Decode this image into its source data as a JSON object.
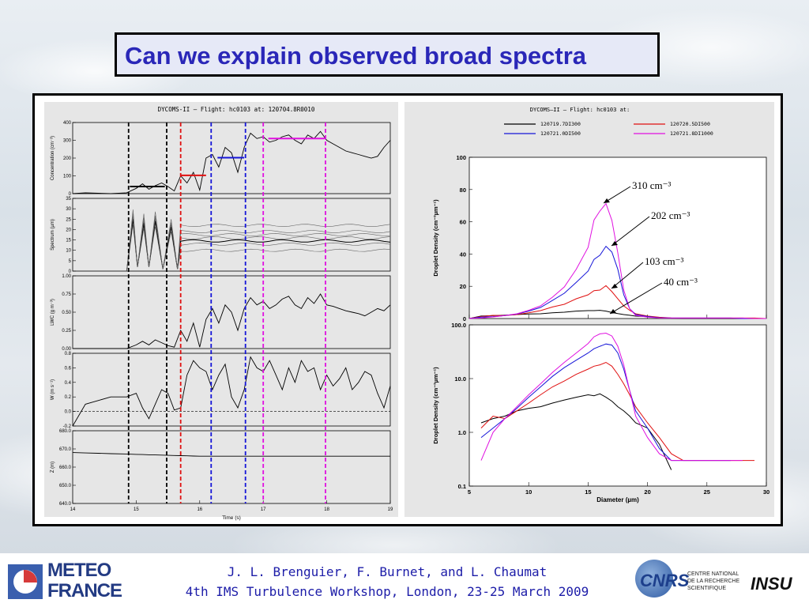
{
  "slide": {
    "title": "Can we explain observed broad spectra",
    "footer_line1": "J. L. Brenguier, F. Burnet, and L. Chaumat",
    "footer_line2": "4th IMS Turbulence Workshop, London, 23-25 March 2009",
    "logo_left_line1": "METEO",
    "logo_left_line2": "FRANCE",
    "logo_right_cnrs": "CNRS",
    "logo_right_name": "CENTRE NATIONAL DE LA RECHERCHE SCIENTIFIQUE",
    "logo_right_insu": "INSU"
  },
  "colors": {
    "title": "#2a27b8",
    "black": "#000000",
    "red": "#e01010",
    "blue": "#1515d8",
    "magenta": "#e010e0"
  },
  "chart_data": [
    {
      "type": "line",
      "title": "DYCOMS-II  –   Flight:  hc0103   at:  120704.8R0010",
      "xlabel": "Time (s)",
      "x_ticks": [
        "14",
        "15",
        "16",
        "17",
        "18",
        "19"
      ],
      "xlim": [
        14,
        19
      ],
      "time_x": [
        14.0,
        14.2,
        14.4,
        14.6,
        14.85,
        15.0,
        15.1,
        15.2,
        15.3,
        15.4,
        15.5,
        15.6,
        15.7,
        15.8,
        15.9,
        16.0,
        16.1,
        16.2,
        16.3,
        16.4,
        16.5,
        16.6,
        16.7,
        16.8,
        16.9,
        17.0,
        17.1,
        17.2,
        17.3,
        17.4,
        17.5,
        17.6,
        17.7,
        17.8,
        17.9,
        18.0,
        18.1,
        18.2,
        18.3,
        18.4,
        18.5,
        18.6,
        18.7,
        18.8,
        18.9,
        19.0
      ],
      "vertical_markers": [
        {
          "t": 14.88,
          "color": "black"
        },
        {
          "t": 15.48,
          "color": "black"
        },
        {
          "t": 15.7,
          "color": "red"
        },
        {
          "t": 16.18,
          "color": "blue"
        },
        {
          "t": 16.72,
          "color": "blue"
        },
        {
          "t": 17.0,
          "color": "magenta"
        },
        {
          "t": 17.98,
          "color": "magenta"
        }
      ],
      "panels": [
        {
          "ylabel": "Concentration (cm⁻³)",
          "ylim": [
            0,
            400
          ],
          "y_ticks": [
            "0",
            "100",
            "200",
            "300",
            "400"
          ],
          "values": [
            0,
            5,
            2,
            0,
            5,
            30,
            55,
            25,
            45,
            60,
            40,
            15,
            100,
            60,
            120,
            20,
            200,
            220,
            150,
            260,
            230,
            120,
            260,
            340,
            310,
            320,
            290,
            300,
            320,
            330,
            300,
            280,
            330,
            310,
            350,
            300,
            280,
            260,
            240,
            230,
            220,
            210,
            200,
            210,
            260,
            300
          ],
          "level_bars": [
            {
              "t0": 14.9,
              "t1": 15.45,
              "value": 40,
              "color": "black"
            },
            {
              "t0": 15.7,
              "t1": 16.1,
              "value": 103,
              "color": "red"
            },
            {
              "t0": 16.28,
              "t1": 16.7,
              "value": 202,
              "color": "blue"
            },
            {
              "t0": 17.08,
              "t1": 17.98,
              "value": 310,
              "color": "magenta"
            }
          ]
        },
        {
          "ylabel": "Spectrum (µm)",
          "ylim": [
            0,
            35
          ],
          "y_ticks": [
            "0",
            "5",
            "10",
            "15",
            "20",
            "25",
            "30",
            "35"
          ]
        },
        {
          "ylabel": "LWC (g m⁻³)",
          "ylim": [
            0,
            1.0
          ],
          "y_ticks": [
            "0.00",
            "0.25",
            "0.50",
            "0.75",
            "1.00"
          ],
          "values": [
            0,
            0,
            0,
            0,
            0,
            0.05,
            0.1,
            0.05,
            0.12,
            0.08,
            0.04,
            0.02,
            0.25,
            0.1,
            0.35,
            0.02,
            0.4,
            0.55,
            0.35,
            0.6,
            0.5,
            0.25,
            0.55,
            0.7,
            0.6,
            0.65,
            0.55,
            0.6,
            0.68,
            0.72,
            0.6,
            0.55,
            0.7,
            0.62,
            0.75,
            0.6,
            0.58,
            0.55,
            0.52,
            0.5,
            0.48,
            0.45,
            0.5,
            0.55,
            0.52,
            0.6
          ]
        },
        {
          "ylabel": "W (m s⁻¹)",
          "ylim": [
            -0.2,
            0.8
          ],
          "y_ticks": [
            "-0.2",
            "0.0",
            "0.2",
            "0.4",
            "0.6",
            "0.8"
          ],
          "values": [
            -0.2,
            0.1,
            0.15,
            0.2,
            0.2,
            0.25,
            0.05,
            -0.1,
            0.1,
            0.3,
            0.25,
            0.02,
            0.05,
            0.5,
            0.7,
            0.6,
            0.55,
            0.3,
            0.5,
            0.65,
            0.2,
            0.05,
            0.3,
            0.75,
            0.6,
            0.55,
            0.7,
            0.5,
            0.3,
            0.6,
            0.4,
            0.7,
            0.55,
            0.6,
            0.3,
            0.5,
            0.35,
            0.45,
            0.6,
            0.3,
            0.4,
            0.55,
            0.5,
            0.25,
            0.05,
            0.35
          ],
          "dashed_zero": true
        },
        {
          "ylabel": "Z (m)",
          "ylim": [
            640,
            680
          ],
          "y_ticks": [
            "640.0",
            "650.0",
            "660.0",
            "670.0",
            "680.0"
          ],
          "values": [
            668,
            667.8,
            667.6,
            667.4,
            667.2,
            667.0,
            666.9,
            666.8,
            666.7,
            666.6,
            666.5,
            666.4,
            666.3,
            666.2,
            666.1,
            666.0,
            666.0,
            666.0,
            666.0,
            666.0,
            666.0,
            666.0,
            666.0,
            666.0,
            666.0,
            666.0,
            666.0,
            666.0,
            666.0,
            666.0,
            666.0,
            666.0,
            666.0,
            666.0,
            666.0,
            666.0,
            666.0,
            666.0,
            666.0,
            666.0,
            666.0,
            666.0,
            666.0,
            666.0,
            666.0,
            666.0
          ]
        }
      ]
    },
    {
      "type": "line",
      "title": "DYCOMS–II   –   Flight:   hc0103    at:",
      "legend": [
        {
          "label": "120719.7DI300",
          "color": "black"
        },
        {
          "label": "120720.5DI500",
          "color": "red"
        },
        {
          "label": "120721.0DI500",
          "color": "blue"
        },
        {
          "label": "120721.8DI1000",
          "color": "magenta"
        }
      ],
      "xlabel": "Diameter (µm)",
      "x_ticks": [
        "5",
        "10",
        "15",
        "20",
        "25",
        "30"
      ],
      "xlim": [
        5,
        30
      ],
      "diameter_x": [
        5,
        6,
        7,
        8,
        9,
        10,
        11,
        12,
        13,
        14,
        15,
        15.5,
        16,
        16.5,
        17,
        17.5,
        18,
        18.5,
        19,
        20,
        21,
        22,
        23,
        24,
        25,
        26,
        27,
        28,
        29,
        30
      ],
      "linear_panel": {
        "ylabel": "Droplet Density (cm⁻³µm⁻¹)",
        "ylim": [
          0,
          100
        ],
        "y_ticks": [
          "0",
          "20",
          "40",
          "60",
          "80",
          "100"
        ],
        "annotations": [
          "310 cm⁻³",
          "202 cm⁻³",
          "103 cm⁻³",
          "40 cm⁻³"
        ]
      },
      "log_panel": {
        "ylabel": "Droplet Density (cm⁻³µm⁻¹)",
        "ylim": [
          0.1,
          100
        ],
        "y_ticks": [
          "0.1",
          "1.0",
          "10.0",
          "100.0"
        ]
      },
      "series": [
        {
          "name": "40 cm-3",
          "color": "black",
          "values": [
            0,
            1.5,
            1.8,
            2.0,
            2.5,
            2.8,
            3.0,
            3.5,
            4.0,
            4.5,
            5.0,
            4.8,
            5.2,
            4.5,
            3.8,
            3.0,
            2.5,
            2.0,
            1.5,
            1.2,
            0.6,
            0.2,
            0,
            0,
            0,
            0,
            0,
            0,
            0,
            0
          ]
        },
        {
          "name": "103 cm-3",
          "color": "red",
          "values": [
            0,
            1.2,
            2.0,
            1.8,
            2.5,
            3.5,
            5.0,
            7.0,
            9.0,
            12,
            15,
            17,
            18,
            20,
            17,
            12,
            8,
            5,
            3,
            1.5,
            0.8,
            0.4,
            0.3,
            0.3,
            0.3,
            0.3,
            0.3,
            0.3,
            0.3,
            0
          ]
        },
        {
          "name": "202 cm-3",
          "color": "blue",
          "values": [
            0,
            0.8,
            1.2,
            1.8,
            2.8,
            4.5,
            7,
            11,
            16,
            22,
            30,
            36,
            40,
            44,
            42,
            30,
            15,
            6,
            2.5,
            1.2,
            0.5,
            0.3,
            0.3,
            0.3,
            0.3,
            0.3,
            0.3,
            0,
            0,
            0
          ]
        },
        {
          "name": "310 cm-3",
          "color": "magenta",
          "values": [
            0,
            0.3,
            1.0,
            1.8,
            3.0,
            5.0,
            8,
            13,
            20,
            30,
            45,
            60,
            68,
            70,
            62,
            40,
            18,
            6,
            2.0,
            0.8,
            0.4,
            0.3,
            0.3,
            0.3,
            0.3,
            0.3,
            0.3,
            0.3,
            0,
            0
          ]
        }
      ]
    }
  ]
}
